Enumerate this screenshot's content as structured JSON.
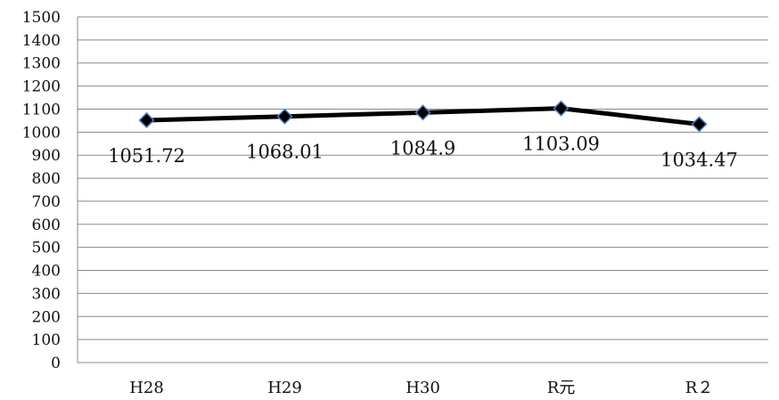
{
  "chart_data": {
    "type": "line",
    "title": "",
    "xlabel": "",
    "ylabel": "",
    "categories": [
      "H28",
      "H29",
      "H30",
      "R元",
      "R２"
    ],
    "series": [
      {
        "values": [
          1051.72,
          1068.01,
          1084.9,
          1103.09,
          1034.47
        ],
        "labels": [
          "1051.72",
          "1068.01",
          "1084.9",
          "1103.09",
          "1034.47"
        ]
      }
    ],
    "ylim": [
      0,
      1500
    ],
    "ytick_step": 100,
    "grid": true,
    "legend": "none",
    "line_color": "#000000",
    "marker": "diamond",
    "marker_color": "#000000",
    "marker_edge_color": "#4f7bbf"
  }
}
